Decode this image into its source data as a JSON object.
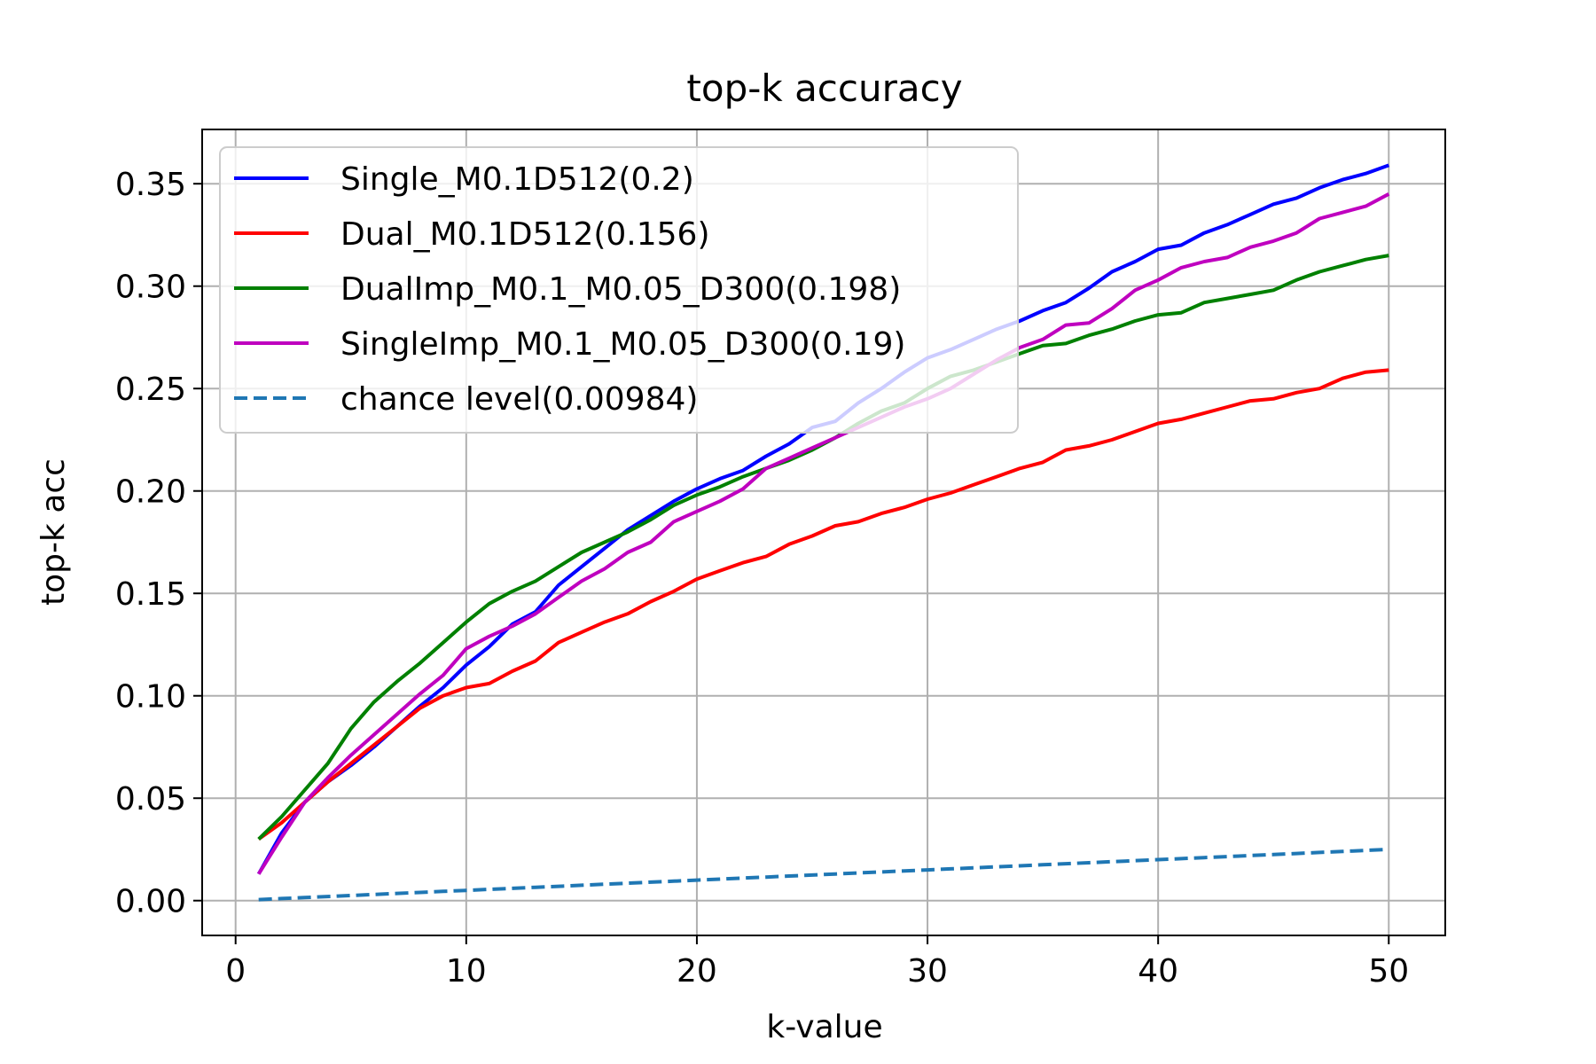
{
  "chart_data": {
    "type": "line",
    "title": "top-k accuracy",
    "xlabel": "k-value",
    "ylabel": "top-k acc",
    "xlim": [
      -1.45,
      52.45
    ],
    "ylim": [
      -0.017,
      0.3765
    ],
    "xticks": [
      0,
      10,
      20,
      30,
      40,
      50
    ],
    "xtick_labels": [
      "0",
      "10",
      "20",
      "30",
      "40",
      "50"
    ],
    "yticks": [
      0.0,
      0.05,
      0.1,
      0.15,
      0.2,
      0.25,
      0.3,
      0.35
    ],
    "ytick_labels": [
      "0.00",
      "0.05",
      "0.10",
      "0.15",
      "0.20",
      "0.25",
      "0.30",
      "0.35"
    ],
    "grid": true,
    "legend_position": "upper-left",
    "x": [
      1,
      2,
      3,
      4,
      5,
      6,
      7,
      8,
      9,
      10,
      11,
      12,
      13,
      14,
      15,
      16,
      17,
      18,
      19,
      20,
      21,
      22,
      23,
      24,
      25,
      26,
      27,
      28,
      29,
      30,
      31,
      32,
      33,
      34,
      35,
      36,
      37,
      38,
      39,
      40,
      41,
      42,
      43,
      44,
      45,
      46,
      47,
      48,
      49,
      50
    ],
    "series": [
      {
        "name": "Single_M0.1D512(0.2)",
        "color": "#0000ff",
        "style": "solid",
        "values": [
          0.013,
          0.033,
          0.048,
          0.058,
          0.066,
          0.075,
          0.085,
          0.095,
          0.104,
          0.115,
          0.124,
          0.135,
          0.141,
          0.154,
          0.163,
          0.172,
          0.181,
          0.188,
          0.195,
          0.201,
          0.206,
          0.21,
          0.217,
          0.223,
          0.231,
          0.234,
          0.243,
          0.25,
          0.258,
          0.265,
          0.269,
          0.274,
          0.279,
          0.283,
          0.288,
          0.292,
          0.299,
          0.307,
          0.312,
          0.318,
          0.32,
          0.326,
          0.33,
          0.335,
          0.34,
          0.343,
          0.348,
          0.352,
          0.355,
          0.359
        ]
      },
      {
        "name": "Dual_M0.1D512(0.156)",
        "color": "#ff0000",
        "style": "solid",
        "values": [
          0.03,
          0.038,
          0.048,
          0.058,
          0.067,
          0.076,
          0.085,
          0.094,
          0.1,
          0.104,
          0.106,
          0.112,
          0.117,
          0.126,
          0.131,
          0.136,
          0.14,
          0.146,
          0.151,
          0.157,
          0.161,
          0.165,
          0.168,
          0.174,
          0.178,
          0.183,
          0.185,
          0.189,
          0.192,
          0.196,
          0.199,
          0.203,
          0.207,
          0.211,
          0.214,
          0.22,
          0.222,
          0.225,
          0.229,
          0.233,
          0.235,
          0.238,
          0.241,
          0.244,
          0.245,
          0.248,
          0.25,
          0.255,
          0.258,
          0.259
        ]
      },
      {
        "name": "DualImp_M0.1_M0.05_D300(0.198)",
        "color": "#008000",
        "style": "solid",
        "values": [
          0.03,
          0.041,
          0.054,
          0.067,
          0.084,
          0.097,
          0.107,
          0.116,
          0.126,
          0.136,
          0.145,
          0.151,
          0.156,
          0.163,
          0.17,
          0.175,
          0.18,
          0.186,
          0.193,
          0.198,
          0.202,
          0.207,
          0.211,
          0.215,
          0.22,
          0.226,
          0.233,
          0.239,
          0.243,
          0.25,
          0.256,
          0.259,
          0.263,
          0.267,
          0.271,
          0.272,
          0.276,
          0.279,
          0.283,
          0.286,
          0.287,
          0.292,
          0.294,
          0.296,
          0.298,
          0.303,
          0.307,
          0.31,
          0.313,
          0.315
        ]
      },
      {
        "name": "SingleImp_M0.1_M0.05_D300(0.19)",
        "color": "#bf00bf",
        "style": "solid",
        "values": [
          0.013,
          0.031,
          0.048,
          0.06,
          0.071,
          0.081,
          0.091,
          0.101,
          0.11,
          0.123,
          0.129,
          0.134,
          0.14,
          0.148,
          0.156,
          0.162,
          0.17,
          0.175,
          0.185,
          0.19,
          0.195,
          0.201,
          0.211,
          0.216,
          0.221,
          0.226,
          0.231,
          0.236,
          0.241,
          0.245,
          0.25,
          0.257,
          0.264,
          0.27,
          0.274,
          0.281,
          0.282,
          0.289,
          0.298,
          0.303,
          0.309,
          0.312,
          0.314,
          0.319,
          0.322,
          0.326,
          0.333,
          0.336,
          0.339,
          0.345
        ]
      },
      {
        "name": "chance level(0.00984)",
        "color": "#1f77b4",
        "style": "dashed",
        "values": [
          0.0005,
          0.001,
          0.0015,
          0.002,
          0.0025,
          0.003,
          0.0035,
          0.004,
          0.0045,
          0.005,
          0.0055,
          0.006,
          0.0065,
          0.007,
          0.0075,
          0.008,
          0.0085,
          0.009,
          0.0095,
          0.01,
          0.0105,
          0.011,
          0.0115,
          0.012,
          0.0125,
          0.013,
          0.0135,
          0.014,
          0.0145,
          0.015,
          0.0155,
          0.016,
          0.0165,
          0.017,
          0.0175,
          0.018,
          0.0185,
          0.019,
          0.0195,
          0.02,
          0.0205,
          0.021,
          0.0215,
          0.022,
          0.0225,
          0.023,
          0.0235,
          0.024,
          0.0245,
          0.025
        ]
      }
    ]
  }
}
